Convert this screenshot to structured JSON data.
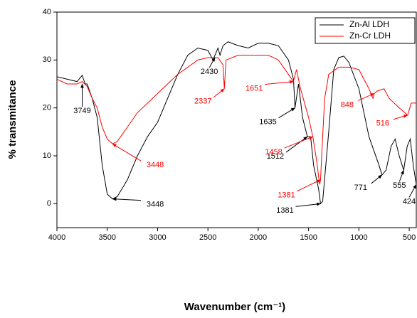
{
  "chart_data": {
    "type": "line",
    "xlabel": "Wavenumber (cm⁻¹)",
    "ylabel": "% transmitance",
    "xlim": [
      4000,
      430
    ],
    "ylim": [
      -5,
      40
    ],
    "xticks": [
      4000,
      3500,
      3000,
      2500,
      2000,
      1500,
      1000,
      500
    ],
    "yticks": [
      0,
      10,
      20,
      30,
      40
    ],
    "legend": "top-right",
    "series": [
      {
        "name": "Zn-Al LDH",
        "color": "#000000",
        "x": [
          4000,
          3900,
          3800,
          3749,
          3720,
          3700,
          3650,
          3600,
          3550,
          3500,
          3448,
          3400,
          3300,
          3200,
          3100,
          3000,
          2900,
          2800,
          2700,
          2600,
          2500,
          2450,
          2430,
          2400,
          2380,
          2350,
          2300,
          2200,
          2100,
          2000,
          1900,
          1800,
          1700,
          1650,
          1635,
          1600,
          1560,
          1512,
          1480,
          1450,
          1400,
          1381,
          1360,
          1300,
          1250,
          1200,
          1150,
          1100,
          1000,
          900,
          800,
          771,
          730,
          680,
          640,
          600,
          555,
          520,
          490,
          460,
          430
        ],
        "values": [
          26.5,
          26,
          25.5,
          26.8,
          25,
          25,
          22,
          18,
          8,
          2,
          1,
          1.5,
          5,
          10,
          14,
          17,
          22,
          27,
          31,
          32.5,
          32,
          30,
          31,
          32.5,
          31,
          33,
          33.8,
          33,
          32.5,
          33.5,
          33.5,
          33,
          30,
          26,
          20,
          25,
          18,
          14,
          14,
          8,
          3,
          0,
          0.5,
          15,
          28,
          30.5,
          30.8,
          29.5,
          24,
          14,
          8,
          6,
          7,
          12,
          13.5,
          10,
          7,
          12,
          13.5,
          8,
          4
        ]
      },
      {
        "name": "Zn-Cr LDH",
        "color": "#ff0000",
        "x": [
          4000,
          3900,
          3800,
          3749,
          3700,
          3650,
          3600,
          3550,
          3500,
          3448,
          3400,
          3300,
          3200,
          3000,
          2800,
          2600,
          2500,
          2400,
          2350,
          2337,
          2320,
          2200,
          2000,
          1900,
          1800,
          1700,
          1651,
          1620,
          1580,
          1500,
          1458,
          1420,
          1390,
          1381,
          1370,
          1340,
          1300,
          1200,
          1100,
          1000,
          950,
          900,
          860,
          848,
          820,
          750,
          700,
          600,
          516,
          480,
          430
        ],
        "values": [
          26,
          25,
          25,
          25.5,
          24.5,
          22,
          20,
          16,
          13.5,
          12.5,
          13,
          16,
          19,
          23,
          27,
          30,
          30.5,
          30.5,
          29,
          24,
          30,
          31,
          31,
          31,
          30,
          27,
          25.5,
          28,
          24,
          18,
          14,
          9,
          4,
          5,
          10,
          22,
          27,
          28.5,
          28.5,
          28,
          26,
          24,
          22,
          23,
          23.5,
          24,
          22,
          20,
          18.5,
          21,
          21
        ]
      }
    ],
    "annotations": [
      {
        "text": "3749",
        "x": 3749,
        "y": 25,
        "color": "#000000"
      },
      {
        "text": "2430",
        "x": 2430,
        "y": 30.5,
        "color": "#000000"
      },
      {
        "text": "1635",
        "x": 1635,
        "y": 20,
        "color": "#000000"
      },
      {
        "text": "1512",
        "x": 1512,
        "y": 14,
        "color": "#000000"
      },
      {
        "text": "1381",
        "x": 1381,
        "y": 0,
        "color": "#000000"
      },
      {
        "text": "771",
        "x": 771,
        "y": 6,
        "color": "#000000"
      },
      {
        "text": "555",
        "x": 555,
        "y": 7,
        "color": "#000000"
      },
      {
        "text": "424",
        "x": 430,
        "y": 4,
        "color": "#000000"
      },
      {
        "text": "3448",
        "x": 3448,
        "y": 1,
        "color": "#000000"
      },
      {
        "text": "3448",
        "x": 3448,
        "y": 12.5,
        "color": "#ff0000"
      },
      {
        "text": "2337",
        "x": 2337,
        "y": 24,
        "color": "#ff0000"
      },
      {
        "text": "1651",
        "x": 1651,
        "y": 25.5,
        "color": "#ff0000"
      },
      {
        "text": "1458",
        "x": 1458,
        "y": 14,
        "color": "#ff0000"
      },
      {
        "text": "1381",
        "x": 1381,
        "y": 5,
        "color": "#ff0000"
      },
      {
        "text": "848",
        "x": 848,
        "y": 23,
        "color": "#ff0000"
      },
      {
        "text": "516",
        "x": 516,
        "y": 18.5,
        "color": "#ff0000"
      }
    ]
  }
}
